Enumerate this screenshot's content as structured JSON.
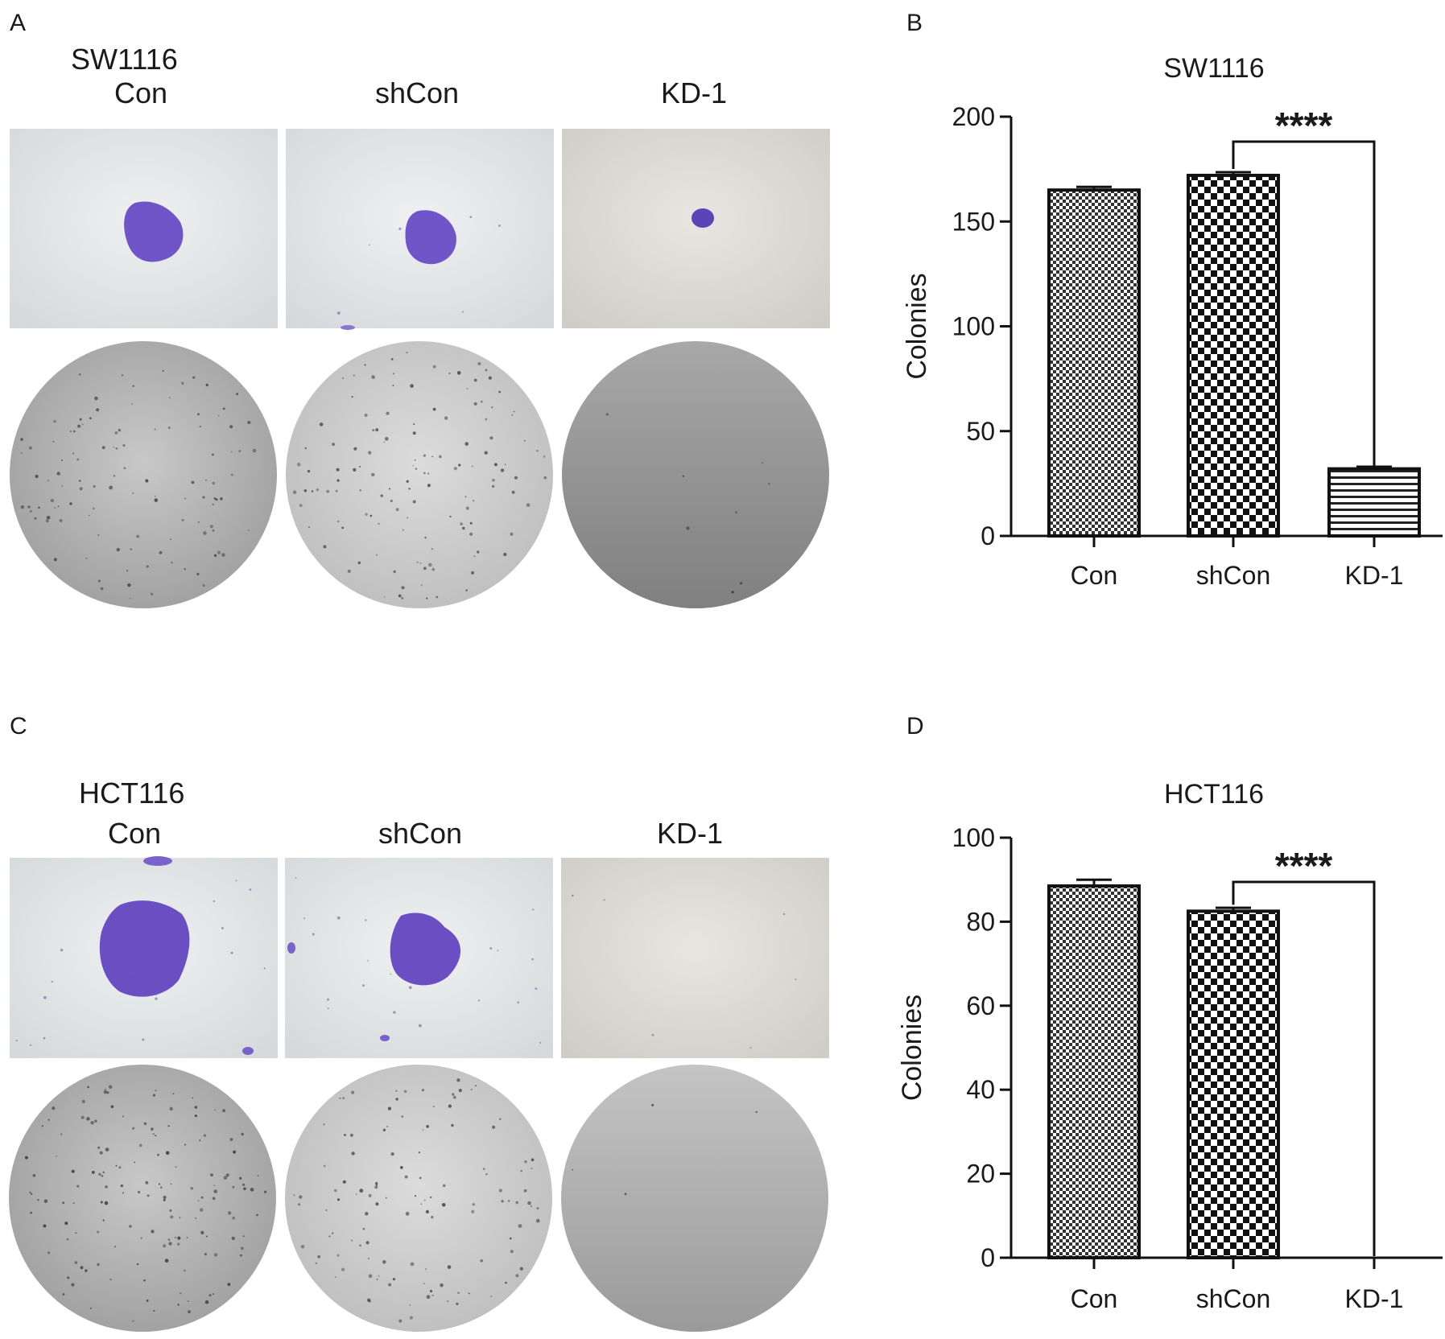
{
  "panels": {
    "A": {
      "label": "A",
      "cell_line": "SW1116",
      "headers": [
        "Con",
        "shCon",
        "KD-1"
      ]
    },
    "B": {
      "label": "B"
    },
    "C": {
      "label": "C",
      "cell_line": "HCT116",
      "headers": [
        "Con",
        "shCon",
        "KD-1"
      ]
    },
    "D": {
      "label": "D"
    }
  },
  "colors": {
    "stain_purple": "#6f55c8",
    "bar_stroke": "#111111",
    "photo_bg_light": "#e4e6e8",
    "dish_gray": "#b9b9b9"
  },
  "chart_data": [
    {
      "type": "bar",
      "panel": "B",
      "title": "SW1116",
      "ylabel": "Colonies",
      "xlabel": "",
      "categories": [
        "Con",
        "shCon",
        "KD-1"
      ],
      "values": [
        165,
        172,
        32
      ],
      "errors": [
        1.5,
        1.5,
        1
      ],
      "ylim": [
        0,
        200
      ],
      "yticks": [
        0,
        50,
        100,
        150,
        200
      ],
      "significance": {
        "from": "shCon",
        "to": "KD-1",
        "label": "****"
      },
      "fill_patterns": [
        "fine-check",
        "coarse-check",
        "horizontal-lines"
      ]
    },
    {
      "type": "bar",
      "panel": "D",
      "title": "HCT116",
      "ylabel": "Colonies",
      "xlabel": "",
      "categories": [
        "Con",
        "shCon",
        "KD-1"
      ],
      "values": [
        88.5,
        82.5,
        0
      ],
      "errors": [
        1.5,
        0.8,
        0
      ],
      "ylim": [
        0,
        100
      ],
      "yticks": [
        0,
        20,
        40,
        60,
        80,
        100
      ],
      "significance": {
        "from": "shCon",
        "to": "KD-1",
        "label": "****"
      },
      "fill_patterns": [
        "fine-check",
        "coarse-check",
        "horizontal-lines"
      ]
    }
  ]
}
